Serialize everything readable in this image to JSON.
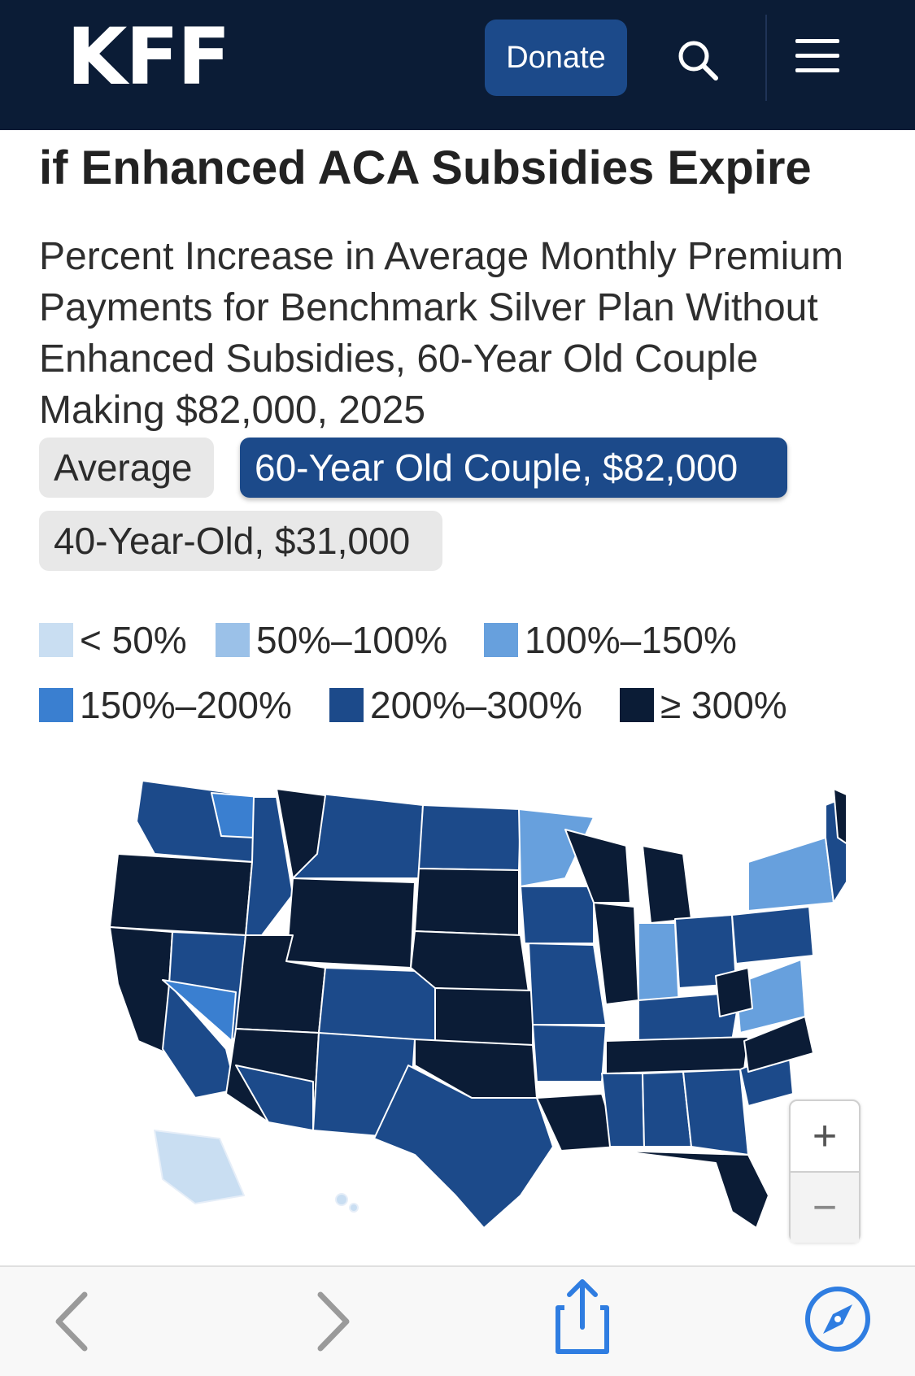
{
  "header": {
    "logo_text": "KFF",
    "donate_label": "Donate",
    "search_icon": "search-icon",
    "menu_icon": "menu-icon"
  },
  "article": {
    "title": "if Enhanced ACA Subsidies Expire",
    "subtitle": "Percent Increase in Average Monthly Premium Payments for Benchmark Silver Plan Without Enhanced Subsidies, 60-Year Old Couple Making $82,000, 2025"
  },
  "tabs": [
    {
      "label": "Average",
      "active": false
    },
    {
      "label": "60-Year Old Couple, $82,000",
      "active": true
    },
    {
      "label": "40-Year-Old, $31,000",
      "active": false
    }
  ],
  "legend": [
    {
      "label": "< 50%",
      "color": "#c9def2"
    },
    {
      "label": "50%–100%",
      "color": "#9bc1e8"
    },
    {
      "label": "100%–150%",
      "color": "#67a0dd"
    },
    {
      "label": "150%–200%",
      "color": "#3a7fd0"
    },
    {
      "label": "200%–300%",
      "color": "#1c4a8a"
    },
    {
      "label": "≥ 300%",
      "color": "#0b1c36"
    }
  ],
  "map": {
    "zoom_in_label": "+",
    "zoom_out_label": "−"
  },
  "colors": {
    "navy": "#0b1c36",
    "brand_blue": "#1c4a8a",
    "safari_blue": "#2f7de1"
  },
  "browser_bar": {
    "back_icon": "chevron-left-icon",
    "forward_icon": "chevron-right-icon",
    "share_icon": "share-icon",
    "compass_icon": "compass-icon"
  }
}
